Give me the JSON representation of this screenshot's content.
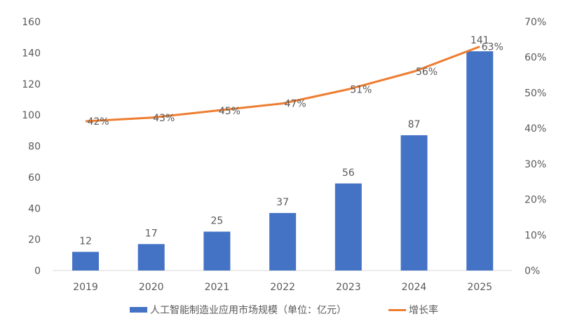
{
  "chart_data": {
    "type": "bar+line",
    "categories": [
      "2019",
      "2020",
      "2021",
      "2022",
      "2023",
      "2024",
      "2025"
    ],
    "series": [
      {
        "name": "人工智能制造业应用市场规模（单位：亿元）",
        "type": "bar",
        "axis": "left",
        "values": [
          12,
          17,
          25,
          37,
          56,
          87,
          141
        ],
        "color": "#4472C4"
      },
      {
        "name": "增长率",
        "type": "line",
        "axis": "right",
        "values": [
          42,
          43,
          45,
          47,
          51,
          56,
          63
        ],
        "color": "#ED7D31"
      }
    ],
    "left_axis": {
      "ylim": [
        0,
        160
      ],
      "ticks": [
        "0",
        "20",
        "40",
        "60",
        "80",
        "100",
        "120",
        "140",
        "160"
      ]
    },
    "right_axis": {
      "ylim": [
        0,
        70
      ],
      "ticks": [
        "0%",
        "10%",
        "20%",
        "30%",
        "40%",
        "50%",
        "60%",
        "70%"
      ]
    },
    "grid": false,
    "legend_position": "bottom",
    "title": ""
  }
}
